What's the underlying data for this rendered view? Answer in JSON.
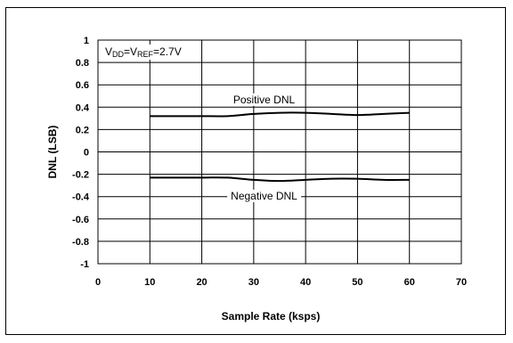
{
  "chart_data": {
    "type": "line",
    "title": "",
    "xlabel": "Sample Rate (ksps)",
    "ylabel": "DNL (LSB)",
    "xlim": [
      0,
      70
    ],
    "ylim": [
      -1,
      1
    ],
    "x_ticks": [
      "0",
      "10",
      "20",
      "30",
      "40",
      "50",
      "60",
      "70"
    ],
    "y_ticks": [
      "1",
      "0.8",
      "0.6",
      "0.4",
      "0.2",
      "0",
      "-0.2",
      "-0.4",
      "-0.6",
      "-0.8",
      "-1"
    ],
    "grid": true,
    "annotation": {
      "v1": "V",
      "v1_sub": "DD",
      "eq": "=V",
      "v2_sub": "REF",
      "tail": "=2.7V"
    },
    "series": [
      {
        "name": "Positive DNL",
        "x": [
          10,
          15,
          20,
          25,
          30,
          35,
          40,
          45,
          50,
          55,
          60
        ],
        "y": [
          0.32,
          0.32,
          0.32,
          0.32,
          0.34,
          0.35,
          0.35,
          0.34,
          0.33,
          0.34,
          0.35
        ]
      },
      {
        "name": "Negative DNL",
        "x": [
          10,
          15,
          20,
          25,
          30,
          35,
          40,
          45,
          50,
          55,
          60
        ],
        "y": [
          -0.23,
          -0.23,
          -0.23,
          -0.23,
          -0.25,
          -0.26,
          -0.25,
          -0.24,
          -0.24,
          -0.25,
          -0.25
        ]
      }
    ]
  }
}
